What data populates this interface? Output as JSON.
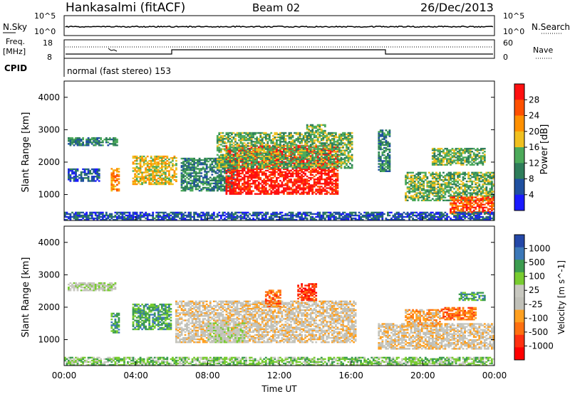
{
  "header": {
    "station": "Hankasalmi (fitACF)",
    "beam": "Beam 02",
    "date": "26/Dec/2013"
  },
  "strip": {
    "nsky_label": "N.Sky",
    "nsearch_label": "N.Search",
    "noise_ticks": [
      "10^5",
      "10^0"
    ],
    "freq_label_1": "Freq.",
    "freq_label_2": "[MHz]",
    "freq_ticks": [
      "18",
      "8"
    ],
    "nave_label": "Nave",
    "nave_ticks": [
      "60",
      "0"
    ],
    "cpid_label": "CPID",
    "cpid_text": "normal (fast stereo) 153"
  },
  "colors": {
    "power": [
      "#1a1aff",
      "#2050a0",
      "#2e7d5a",
      "#4caa5a",
      "#f0c020",
      "#ff9000",
      "#ff5000",
      "#ff1010"
    ],
    "velocity": [
      "#2448a8",
      "#3c78b8",
      "#3c9c50",
      "#78cc30",
      "#c8c8c0",
      "#c0c0b8",
      "#ffa020",
      "#ff7010",
      "#ff3010",
      "#ff0000"
    ]
  },
  "chart_data": [
    {
      "type": "heatmap",
      "panel": "power",
      "ylabel": "Slant Range [km]",
      "xlabel": "Time UT",
      "xlim": [
        "00:00",
        "24:00"
      ],
      "ylim": [
        200,
        4500
      ],
      "x_ticks": [
        "00:00",
        "04:00",
        "08:00",
        "12:00",
        "16:00",
        "20:00",
        "00:00"
      ],
      "y_ticks": [
        1000,
        2000,
        3000,
        4000
      ],
      "colorbar": {
        "label": "Power [dB]",
        "ticks": [
          4,
          8,
          12,
          16,
          20,
          24,
          28
        ]
      },
      "regions": [
        {
          "t": [
            0.2,
            3.0
          ],
          "r": [
            2500,
            2750
          ],
          "level": 2
        },
        {
          "t": [
            0.2,
            2.0
          ],
          "r": [
            1400,
            1800
          ],
          "level": 1
        },
        {
          "t": [
            2.6,
            3.1
          ],
          "r": [
            1100,
            1800
          ],
          "level": 5
        },
        {
          "t": [
            3.8,
            6.2
          ],
          "r": [
            1300,
            2200
          ],
          "level": 4
        },
        {
          "t": [
            6.5,
            9.5
          ],
          "r": [
            1100,
            2100
          ],
          "level": 2
        },
        {
          "t": [
            9.0,
            15.2
          ],
          "r": [
            1000,
            2500
          ],
          "level": 7
        },
        {
          "t": [
            8.5,
            16.0
          ],
          "r": [
            1800,
            2900
          ],
          "level": 3
        },
        {
          "t": [
            13.5,
            14.5
          ],
          "r": [
            2900,
            3150
          ],
          "level": 3
        },
        {
          "t": [
            17.5,
            18.2
          ],
          "r": [
            1700,
            3000
          ],
          "level": 2
        },
        {
          "t": [
            19.0,
            24.0
          ],
          "r": [
            800,
            1700
          ],
          "level": 3
        },
        {
          "t": [
            20.5,
            23.5
          ],
          "r": [
            1900,
            2400
          ],
          "level": 3
        },
        {
          "t": [
            21.5,
            24.0
          ],
          "r": [
            400,
            900
          ],
          "level": 6
        },
        {
          "t": [
            0.0,
            24.0
          ],
          "r": [
            200,
            450
          ],
          "level": 1
        }
      ]
    },
    {
      "type": "heatmap",
      "panel": "velocity",
      "ylabel": "Slant Range [km]",
      "xlabel": "Time UT",
      "xlim": [
        "00:00",
        "24:00"
      ],
      "ylim": [
        200,
        4500
      ],
      "x_ticks": [
        "00:00",
        "04:00",
        "08:00",
        "12:00",
        "16:00",
        "20:00",
        "00:00"
      ],
      "y_ticks": [
        1000,
        2000,
        3000,
        4000
      ],
      "colorbar": {
        "label": "Velocity [m s^-1]",
        "ticks": [
          1000,
          500,
          100,
          25,
          -25,
          -100,
          -500,
          -1000
        ]
      },
      "regions": [
        {
          "t": [
            0.2,
            2.9
          ],
          "r": [
            2500,
            2750
          ],
          "level": 4
        },
        {
          "t": [
            2.6,
            3.1
          ],
          "r": [
            1200,
            1800
          ],
          "level": 2
        },
        {
          "t": [
            3.8,
            5.9
          ],
          "r": [
            1300,
            2100
          ],
          "level": 2
        },
        {
          "t": [
            6.2,
            16.2
          ],
          "r": [
            900,
            2200
          ],
          "level": 5
        },
        {
          "t": [
            8.0,
            10.0
          ],
          "r": [
            900,
            1500
          ],
          "level": 4
        },
        {
          "t": [
            11.2,
            12.0
          ],
          "r": [
            2000,
            2500
          ],
          "level": 7
        },
        {
          "t": [
            13.0,
            14.0
          ],
          "r": [
            2200,
            2700
          ],
          "level": 8
        },
        {
          "t": [
            17.5,
            24.0
          ],
          "r": [
            700,
            1500
          ],
          "level": 5
        },
        {
          "t": [
            19.0,
            21.0
          ],
          "r": [
            1400,
            1900
          ],
          "level": 6
        },
        {
          "t": [
            21.0,
            23.0
          ],
          "r": [
            1600,
            2000
          ],
          "level": 7
        },
        {
          "t": [
            22.0,
            23.5
          ],
          "r": [
            2200,
            2450
          ],
          "level": 2
        },
        {
          "t": [
            0.0,
            24.0
          ],
          "r": [
            200,
            450
          ],
          "level": 3
        }
      ]
    }
  ]
}
